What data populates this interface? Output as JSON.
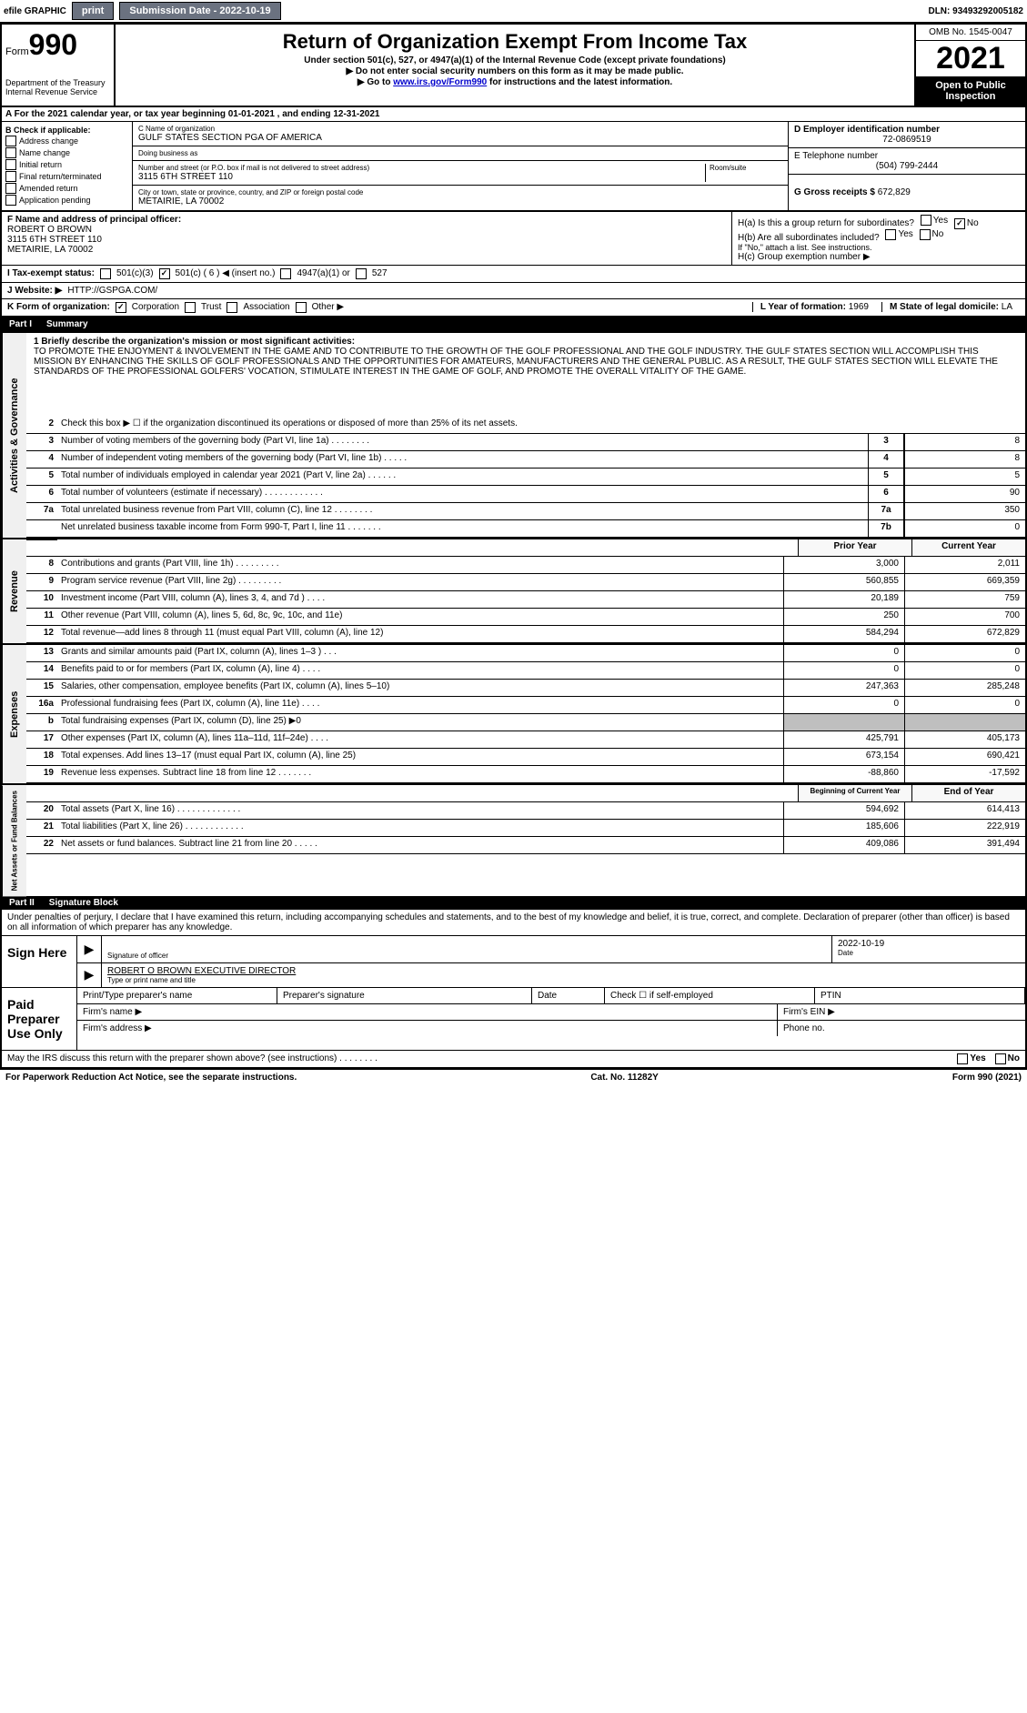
{
  "topbar": {
    "efile": "efile GRAPHIC",
    "print": "print",
    "sub_label": "Submission Date - 2022-10-19",
    "dln": "DLN: 93493292005182"
  },
  "header": {
    "form_word": "Form",
    "form_num": "990",
    "dept": "Department of the Treasury",
    "irs": "Internal Revenue Service",
    "title": "Return of Organization Exempt From Income Tax",
    "sub1": "Under section 501(c), 527, or 4947(a)(1) of the Internal Revenue Code (except private foundations)",
    "sub2": "▶ Do not enter social security numbers on this form as it may be made public.",
    "sub3_pre": "▶ Go to ",
    "sub3_link": "www.irs.gov/Form990",
    "sub3_post": " for instructions and the latest information.",
    "omb": "OMB No. 1545-0047",
    "year": "2021",
    "open": "Open to Public Inspection"
  },
  "row_a": {
    "text": "A For the 2021 calendar year, or tax year beginning 01-01-2021   , and ending 12-31-2021"
  },
  "col_b": {
    "title": "B Check if applicable:",
    "items": [
      "Address change",
      "Name change",
      "Initial return",
      "Final return/terminated",
      "Amended return",
      "Application pending"
    ]
  },
  "col_c": {
    "c_label": "C Name of organization",
    "c_name": "GULF STATES SECTION PGA OF AMERICA",
    "dba_label": "Doing business as",
    "dba": "",
    "addr_label": "Number and street (or P.O. box if mail is not delivered to street address)",
    "room_label": "Room/suite",
    "addr": "3115 6TH STREET 110",
    "city_label": "City or town, state or province, country, and ZIP or foreign postal code",
    "city": "METAIRIE, LA  70002"
  },
  "col_de": {
    "d_label": "D Employer identification number",
    "d_val": "72-0869519",
    "e_label": "E Telephone number",
    "e_val": "(504) 799-2444",
    "g_label": "G Gross receipts $",
    "g_val": "672,829"
  },
  "fh": {
    "f_label": "F  Name and address of principal officer:",
    "f_name": "ROBERT O BROWN",
    "f_addr1": "3115 6TH STREET 110",
    "f_addr2": "METAIRIE, LA  70002",
    "h_a": "H(a)  Is this a group return for subordinates?",
    "h_b": "H(b)  Are all subordinates included?",
    "h_b_note": "If \"No,\" attach a list. See instructions.",
    "h_c": "H(c)  Group exemption number ▶",
    "yes": "Yes",
    "no": "No"
  },
  "row_i": {
    "label": "I   Tax-exempt status:",
    "o1": "501(c)(3)",
    "o2": "501(c) ( 6 ) ◀ (insert no.)",
    "o3": "4947(a)(1) or",
    "o4": "527"
  },
  "row_j": {
    "label": "J   Website: ▶",
    "val": "HTTP://GSPGA.COM/"
  },
  "row_k": {
    "label": "K Form of organization:",
    "o1": "Corporation",
    "o2": "Trust",
    "o3": "Association",
    "o4": "Other ▶"
  },
  "row_lm": {
    "l_label": "L Year of formation:",
    "l_val": "1969",
    "m_label": "M State of legal domicile:",
    "m_val": "LA"
  },
  "part1": {
    "label": "Part I",
    "title": "Summary"
  },
  "mission": {
    "label": "1   Briefly describe the organization's mission or most significant activities:",
    "text": "TO PROMOTE THE ENJOYMENT & INVOLVEMENT IN THE GAME AND TO CONTRIBUTE TO THE GROWTH OF THE GOLF PROFESSIONAL AND THE GOLF INDUSTRY. THE GULF STATES SECTION WILL ACCOMPLISH THIS MISSION BY ENHANCING THE SKILLS OF GOLF PROFESSIONALS AND THE OPPORTUNITIES FOR AMATEURS, MANUFACTURERS AND THE GENERAL PUBLIC. AS A RESULT, THE GULF STATES SECTION WILL ELEVATE THE STANDARDS OF THE PROFESSIONAL GOLFERS' VOCATION, STIMULATE INTEREST IN THE GAME OF GOLF, AND PROMOTE THE OVERALL VITALITY OF THE GAME."
  },
  "gov": {
    "side": "Activities & Governance",
    "line2": "Check this box ▶ ☐ if the organization discontinued its operations or disposed of more than 25% of its net assets.",
    "rows": [
      {
        "n": "3",
        "d": "Number of voting members of the governing body (Part VI, line 1a)  .    .    .    .    .    .    .    .",
        "box": "3",
        "v": "8"
      },
      {
        "n": "4",
        "d": "Number of independent voting members of the governing body (Part VI, line 1b)  .    .    .    .    .",
        "box": "4",
        "v": "8"
      },
      {
        "n": "5",
        "d": "Total number of individuals employed in calendar year 2021 (Part V, line 2a)  .    .    .    .    .    .",
        "box": "5",
        "v": "5"
      },
      {
        "n": "6",
        "d": "Total number of volunteers (estimate if necessary)  .    .    .    .    .    .    .    .    .    .    .    .",
        "box": "6",
        "v": "90"
      },
      {
        "n": "7a",
        "d": "Total unrelated business revenue from Part VIII, column (C), line 12  .    .    .    .    .    .    .    .",
        "box": "7a",
        "v": "350"
      },
      {
        "n": "",
        "d": "Net unrelated business taxable income from Form 990-T, Part I, line 11  .    .    .    .    .    .    .",
        "box": "7b",
        "v": "0"
      }
    ]
  },
  "twocol_hdr": {
    "prior": "Prior Year",
    "current": "Current Year"
  },
  "rev": {
    "side": "Revenue",
    "rows": [
      {
        "n": "8",
        "d": "Contributions and grants (Part VIII, line 1h)  .    .    .    .    .    .    .    .    .",
        "p": "3,000",
        "c": "2,011"
      },
      {
        "n": "9",
        "d": "Program service revenue (Part VIII, line 2g)  .    .    .    .    .    .    .    .    .",
        "p": "560,855",
        "c": "669,359"
      },
      {
        "n": "10",
        "d": "Investment income (Part VIII, column (A), lines 3, 4, and 7d )  .    .    .    .",
        "p": "20,189",
        "c": "759"
      },
      {
        "n": "11",
        "d": "Other revenue (Part VIII, column (A), lines 5, 6d, 8c, 9c, 10c, and 11e)",
        "p": "250",
        "c": "700"
      },
      {
        "n": "12",
        "d": "Total revenue—add lines 8 through 11 (must equal Part VIII, column (A), line 12)",
        "p": "584,294",
        "c": "672,829"
      }
    ]
  },
  "exp": {
    "side": "Expenses",
    "rows": [
      {
        "n": "13",
        "d": "Grants and similar amounts paid (Part IX, column (A), lines 1–3 )  .    .    .",
        "p": "0",
        "c": "0"
      },
      {
        "n": "14",
        "d": "Benefits paid to or for members (Part IX, column (A), line 4)  .    .    .    .",
        "p": "0",
        "c": "0"
      },
      {
        "n": "15",
        "d": "Salaries, other compensation, employee benefits (Part IX, column (A), lines 5–10)",
        "p": "247,363",
        "c": "285,248"
      },
      {
        "n": "16a",
        "d": "Professional fundraising fees (Part IX, column (A), line 11e)  .    .    .    .",
        "p": "0",
        "c": "0"
      },
      {
        "n": "b",
        "d": "Total fundraising expenses (Part IX, column (D), line 25) ▶0",
        "p": "",
        "c": "",
        "shaded": true
      },
      {
        "n": "17",
        "d": "Other expenses (Part IX, column (A), lines 11a–11d, 11f–24e)  .    .    .    .",
        "p": "425,791",
        "c": "405,173"
      },
      {
        "n": "18",
        "d": "Total expenses. Add lines 13–17 (must equal Part IX, column (A), line 25)",
        "p": "673,154",
        "c": "690,421"
      },
      {
        "n": "19",
        "d": "Revenue less expenses. Subtract line 18 from line 12  .    .    .    .    .    .    .",
        "p": "-88,860",
        "c": "-17,592"
      }
    ]
  },
  "nab_hdr": {
    "prior": "Beginning of Current Year",
    "current": "End of Year"
  },
  "nab": {
    "side": "Net Assets or Fund Balances",
    "rows": [
      {
        "n": "20",
        "d": "Total assets (Part X, line 16)  .    .    .    .    .    .    .    .    .    .    .    .    .",
        "p": "594,692",
        "c": "614,413"
      },
      {
        "n": "21",
        "d": "Total liabilities (Part X, line 26)  .    .    .    .    .    .    .    .    .    .    .    .",
        "p": "185,606",
        "c": "222,919"
      },
      {
        "n": "22",
        "d": "Net assets or fund balances. Subtract line 21 from line 20  .    .    .    .    .",
        "p": "409,086",
        "c": "391,494"
      }
    ]
  },
  "part2": {
    "label": "Part II",
    "title": "Signature Block"
  },
  "perjury": "Under penalties of perjury, I declare that I have examined this return, including accompanying schedules and statements, and to the best of my knowledge and belief, it is true, correct, and complete. Declaration of preparer (other than officer) is based on all information of which preparer has any knowledge.",
  "sign": {
    "here": "Sign Here",
    "sig_label": "Signature of officer",
    "date_label": "Date",
    "date_val": "2022-10-19",
    "name": "ROBERT O BROWN  EXECUTIVE DIRECTOR",
    "name_label": "Type or print name and title"
  },
  "paid": {
    "title": "Paid Preparer Use Only",
    "h1": "Print/Type preparer's name",
    "h2": "Preparer's signature",
    "h3": "Date",
    "h4": "Check ☐ if self-employed",
    "h5": "PTIN",
    "firm_name": "Firm's name   ▶",
    "firm_ein": "Firm's EIN ▶",
    "firm_addr": "Firm's address ▶",
    "phone": "Phone no."
  },
  "bottom": {
    "discuss": "May the IRS discuss this return with the preparer shown above? (see instructions)  .    .    .    .    .    .    .    .",
    "yes": "Yes",
    "no": "No",
    "pra": "For Paperwork Reduction Act Notice, see the separate instructions.",
    "cat": "Cat. No. 11282Y",
    "form": "Form 990 (2021)"
  }
}
